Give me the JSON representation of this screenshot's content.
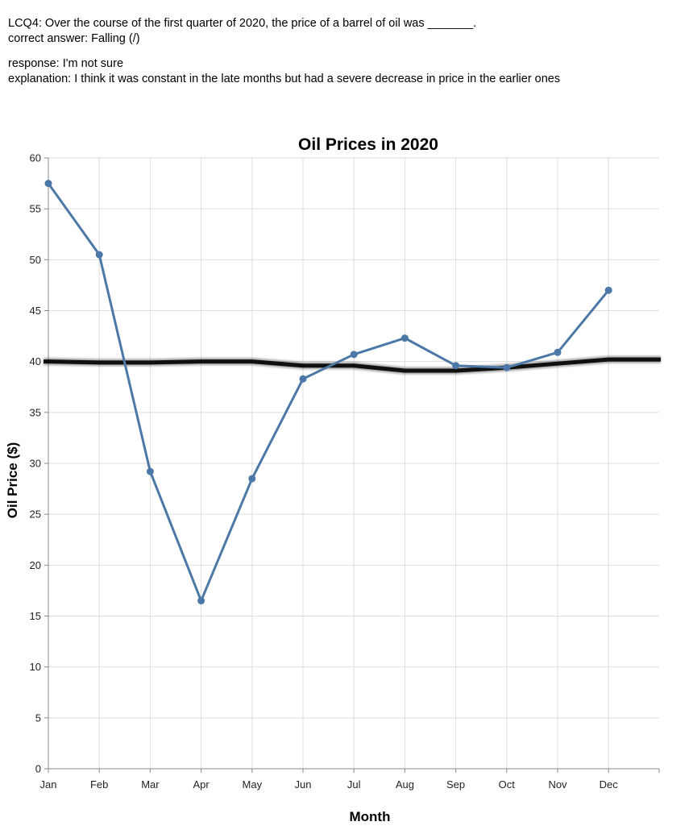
{
  "question": {
    "prompt": "LCQ4: Over the course of the first quarter of 2020, the price of a barrel of oil was _______.",
    "correct_answer": "correct answer: Falling (/)",
    "response": "response: I'm not sure",
    "explanation": "explanation: I think it was constant in the late months but had a severe decrease in price in the earlier ones"
  },
  "chart_data": {
    "type": "line",
    "title": "Oil Prices in 2020",
    "xlabel": "Month",
    "ylabel": "Oil Price ($)",
    "categories": [
      "Jan",
      "Feb",
      "Mar",
      "Apr",
      "May",
      "Jun",
      "Jul",
      "Aug",
      "Sep",
      "Oct",
      "Nov",
      "Dec"
    ],
    "series": [
      {
        "values": [
          57.5,
          50.5,
          29.2,
          16.5,
          28.5,
          38.3,
          40.7,
          42.3,
          39.6,
          39.4,
          40.9,
          47.0
        ]
      }
    ],
    "ylim": [
      0,
      60
    ],
    "yticks": [
      0,
      5,
      10,
      15,
      20,
      25,
      30,
      35,
      40,
      45,
      50,
      55,
      60
    ],
    "grid": true,
    "line_color": "#4c78a8",
    "annotation": {
      "type": "hand-drawn-line",
      "color": "#000000",
      "values": [
        40.0,
        39.9,
        39.9,
        40.0,
        40.0,
        39.6,
        39.6,
        39.1,
        39.1,
        39.4,
        39.8,
        40.2
      ]
    }
  }
}
